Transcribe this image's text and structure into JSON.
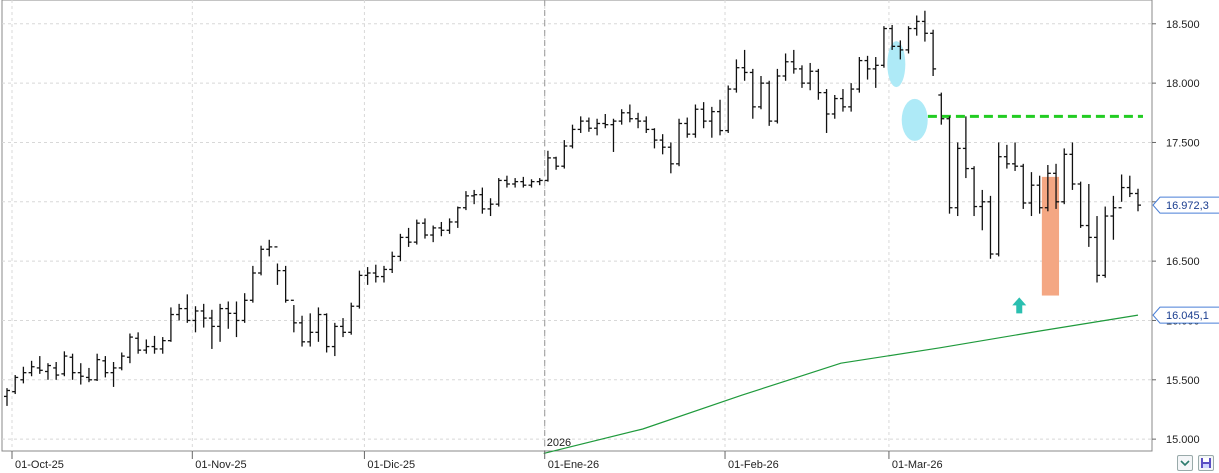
{
  "chart_data": {
    "type": "bar",
    "subtype": "ohlc",
    "title": "",
    "xlabel": "",
    "ylabel": "",
    "ylim": [
      14900,
      18650
    ],
    "y_ticks": [
      "15.000",
      "15.500",
      "16.000",
      "16.500",
      "17.000",
      "17.500",
      "18.000",
      "18.500"
    ],
    "y_tick_values": [
      15000,
      15500,
      16000,
      16500,
      17000,
      17500,
      18000,
      18500
    ],
    "x_tick_labels": [
      "01-Oct-25",
      "01-Nov-25",
      "01-Dic-25",
      "01-Ene-26",
      "01-Feb-26",
      "01-Mar-26"
    ],
    "x_tick_bar_index": [
      0,
      22,
      43,
      65,
      87,
      107
    ],
    "year_marker": "2026",
    "year_marker_bar_index": 65,
    "last_price_label": "16.972,3",
    "ma_price_label": "16.045,1",
    "bars": [
      [
        15360,
        15430,
        15280,
        15410
      ],
      [
        15400,
        15540,
        15380,
        15520
      ],
      [
        15500,
        15610,
        15470,
        15560
      ],
      [
        15560,
        15660,
        15530,
        15610
      ],
      [
        15600,
        15700,
        15550,
        15580
      ],
      [
        15570,
        15640,
        15500,
        15620
      ],
      [
        15600,
        15650,
        15500,
        15540
      ],
      [
        15550,
        15740,
        15530,
        15700
      ],
      [
        15690,
        15720,
        15500,
        15560
      ],
      [
        15560,
        15640,
        15460,
        15530
      ],
      [
        15520,
        15600,
        15480,
        15500
      ],
      [
        15500,
        15720,
        15490,
        15670
      ],
      [
        15660,
        15700,
        15520,
        15560
      ],
      [
        15560,
        15650,
        15440,
        15600
      ],
      [
        15600,
        15730,
        15580,
        15700
      ],
      [
        15690,
        15890,
        15640,
        15860
      ],
      [
        15850,
        15900,
        15720,
        15750
      ],
      [
        15750,
        15840,
        15720,
        15780
      ],
      [
        15780,
        15870,
        15720,
        15760
      ],
      [
        15760,
        15860,
        15720,
        15830
      ],
      [
        15830,
        16110,
        15820,
        16050
      ],
      [
        16050,
        16140,
        16000,
        16100
      ],
      [
        16100,
        16220,
        15980,
        16000
      ]
    ],
    "bars_part2": [
      [
        16000,
        16120,
        15900,
        16080
      ],
      [
        16080,
        16140,
        15940,
        16020
      ],
      [
        16020,
        16090,
        15760,
        15950
      ],
      [
        15950,
        16140,
        15820,
        16100
      ],
      [
        16100,
        16160,
        15930,
        16060
      ],
      [
        16060,
        16160,
        15860,
        16000
      ],
      [
        16000,
        16230,
        15980,
        16170
      ],
      [
        16170,
        16460,
        16150,
        16400
      ],
      [
        16400,
        16630,
        16380,
        16600
      ],
      [
        16600,
        16680,
        16540,
        16620
      ],
      [
        16620,
        16480,
        16300,
        16420
      ],
      [
        16420,
        16460,
        16150,
        16170
      ],
      [
        16170,
        16130,
        15900,
        15980
      ],
      [
        15980,
        16040,
        15780,
        15820
      ],
      [
        15820,
        16060,
        15780,
        15900
      ],
      [
        15900,
        16110,
        15820,
        16050
      ],
      [
        16050,
        16060,
        15730,
        15780
      ],
      [
        15780,
        15980,
        15700,
        15950
      ],
      [
        15950,
        16020,
        15860,
        15900
      ],
      [
        15900,
        16150,
        15880,
        16120
      ],
      [
        16120,
        16420,
        16100,
        16380
      ],
      [
        16380,
        16450,
        16300,
        16400
      ],
      [
        16400,
        16470,
        16320,
        16370
      ]
    ],
    "bars_part3": [
      [
        16370,
        16460,
        16320,
        16430
      ],
      [
        16430,
        16580,
        16400,
        16540
      ],
      [
        16540,
        16730,
        16500,
        16700
      ],
      [
        16700,
        16780,
        16620,
        16660
      ],
      [
        16660,
        16850,
        16640,
        16820
      ],
      [
        16820,
        16860,
        16690,
        16720
      ],
      [
        16720,
        16800,
        16660,
        16780
      ],
      [
        16780,
        16830,
        16710,
        16760
      ],
      [
        16760,
        16860,
        16730,
        16830
      ],
      [
        16830,
        16960,
        16780,
        16950
      ],
      [
        16950,
        17090,
        16930,
        17050
      ],
      [
        17050,
        17100,
        16980,
        17060
      ],
      [
        17060,
        17120,
        16900,
        16940
      ],
      [
        16940,
        17030,
        16880,
        16980
      ],
      [
        16980,
        17200,
        16960,
        17180
      ],
      [
        17180,
        17220,
        17120,
        17150
      ],
      [
        17150,
        17200,
        17120,
        17170
      ],
      [
        17170,
        17210,
        17120,
        17140
      ],
      [
        17140,
        17190,
        17120,
        17170
      ],
      [
        17170,
        17200,
        17140,
        17180
      ],
      [
        17180,
        17430,
        17170,
        17370
      ],
      [
        17370,
        17380,
        17270,
        17300
      ],
      [
        17300,
        17520,
        17280,
        17470
      ]
    ],
    "bars_part4": [
      [
        17470,
        17650,
        17450,
        17610
      ],
      [
        17610,
        17720,
        17580,
        17680
      ],
      [
        17680,
        17710,
        17590,
        17620
      ],
      [
        17620,
        17700,
        17560,
        17660
      ],
      [
        17660,
        17740,
        17620,
        17650
      ],
      [
        17650,
        17700,
        17420,
        17680
      ],
      [
        17680,
        17780,
        17650,
        17750
      ],
      [
        17750,
        17820,
        17670,
        17700
      ],
      [
        17700,
        17750,
        17620,
        17680
      ],
      [
        17680,
        17720,
        17580,
        17610
      ],
      [
        17610,
        17620,
        17450,
        17520
      ],
      [
        17520,
        17570,
        17400,
        17460
      ],
      [
        17460,
        17500,
        17240,
        17320
      ],
      [
        17320,
        17700,
        17300,
        17660
      ],
      [
        17660,
        17710,
        17540,
        17570
      ],
      [
        17570,
        17820,
        17540,
        17780
      ],
      [
        17780,
        17840,
        17620,
        17680
      ],
      [
        17680,
        17800,
        17540,
        17760
      ],
      [
        17760,
        17860,
        17560,
        17600
      ],
      [
        17600,
        17980,
        17580,
        17950
      ],
      [
        17950,
        18200,
        17920,
        18130
      ],
      [
        18130,
        18280,
        18020,
        18090
      ]
    ],
    "bars_part5": [
      [
        18090,
        18120,
        17700,
        17800
      ],
      [
        17800,
        18060,
        17780,
        18000
      ],
      [
        18000,
        18020,
        17640,
        17680
      ],
      [
        17680,
        18120,
        17660,
        18060
      ],
      [
        18060,
        18250,
        18020,
        18180
      ],
      [
        18180,
        18280,
        18080,
        18120
      ],
      [
        18120,
        18150,
        17960,
        18000
      ],
      [
        18000,
        18170,
        17940,
        18100
      ],
      [
        18100,
        18120,
        17860,
        17920
      ],
      [
        17920,
        17950,
        17580,
        17740
      ],
      [
        17740,
        17900,
        17700,
        17870
      ],
      [
        17870,
        17950,
        17760,
        17800
      ],
      [
        17800,
        18000,
        17760,
        17950
      ],
      [
        17950,
        18220,
        17920,
        18190
      ],
      [
        18190,
        18230,
        18030,
        18120
      ],
      [
        18120,
        18220,
        17960,
        18150
      ],
      [
        18150,
        18480,
        18130,
        18460
      ],
      [
        18460,
        18490,
        18280,
        18310
      ],
      [
        18310,
        18360,
        18200,
        18280
      ],
      [
        18280,
        18480,
        18250,
        18460
      ],
      [
        18460,
        18570,
        18400,
        18520
      ],
      [
        18520,
        18610,
        18350,
        18420
      ],
      [
        18420,
        18450,
        18060,
        18120
      ]
    ],
    "bars_part6": [
      [
        17900,
        17920,
        17650,
        17700
      ],
      [
        17700,
        17720,
        16900,
        16950
      ],
      [
        16950,
        17500,
        16880,
        17450
      ],
      [
        17450,
        17720,
        17200,
        17280
      ],
      [
        17280,
        17300,
        16880,
        16960
      ],
      [
        16960,
        17100,
        16760,
        17000
      ],
      [
        17000,
        17050,
        16520,
        16560
      ],
      [
        16560,
        17500,
        16540,
        17380
      ],
      [
        17380,
        17480,
        17280,
        17320
      ],
      [
        17320,
        17500,
        17260,
        17300
      ],
      [
        17300,
        17320,
        16940,
        16990
      ],
      [
        16990,
        17250,
        16880,
        17140
      ],
      [
        17140,
        17220,
        16900,
        16950
      ],
      [
        16950,
        17310,
        16920,
        17240
      ],
      [
        17240,
        17320,
        16940,
        17000
      ],
      [
        17000,
        17450,
        16980,
        17400
      ],
      [
        17400,
        17500,
        17100,
        17150
      ],
      [
        17150,
        17170,
        16780,
        16800
      ],
      [
        16800,
        17150,
        16620,
        16700
      ],
      [
        16700,
        16880,
        16320,
        16380
      ],
      [
        16380,
        16960,
        16360,
        16880
      ],
      [
        16880,
        17050,
        16680,
        16950
      ],
      [
        16950,
        17230,
        17000,
        17120
      ],
      [
        17120,
        17220,
        17040,
        17070
      ],
      [
        17070,
        17110,
        16920,
        16972
      ]
    ],
    "series": [
      {
        "type": "moving-average",
        "color": "#1f9a3c",
        "start_bar_index": 65,
        "values": [
          14880,
          15085,
          15370,
          15640,
          15770,
          15910,
          16045
        ]
      }
    ],
    "resistance_level": 17720,
    "resistance_color": "#22cc22",
    "colors": {
      "bar": "#111111",
      "grid": "#d8d8d8",
      "highlight_ellipse": "#aeeaf7",
      "highlight_rect": "#f4a783",
      "arrow": "#2bbfb0",
      "price_label_border": "#4a7fd6",
      "year_line": "#999999"
    },
    "legend": "none",
    "grid": true
  },
  "status_icons": [
    "chevron-down-icon",
    "save-icon"
  ]
}
